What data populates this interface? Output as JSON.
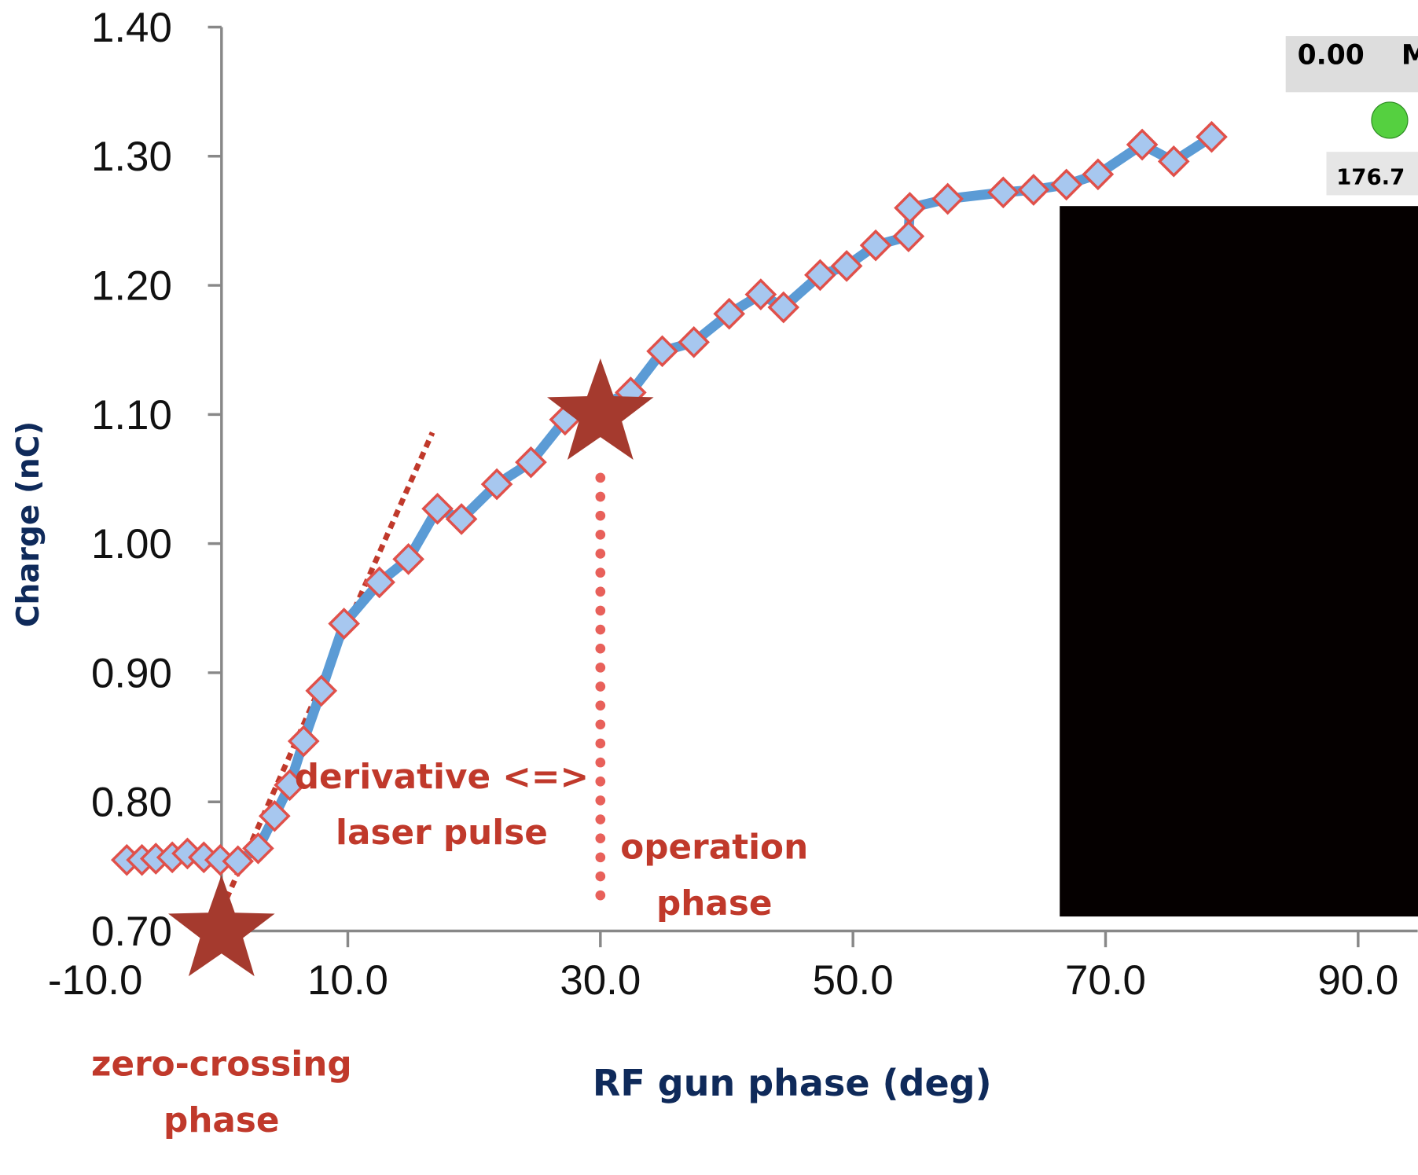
{
  "chart_data": {
    "type": "line",
    "x_label": "RF gun phase (deg)",
    "y_label": "Charge (nC)",
    "x": [
      -7.5,
      -6.3,
      -5.2,
      -3.9,
      -2.7,
      -1.4,
      -0.1,
      1.3,
      2.9,
      4.2,
      5.4,
      6.5,
      7.9,
      9.7,
      12.5,
      14.8,
      17.1,
      19.0,
      21.8,
      24.5,
      27.2,
      32.4,
      34.9,
      37.4,
      40.2,
      42.7,
      44.5,
      47.4,
      49.5,
      51.8,
      54.4,
      54.5,
      57.5,
      61.9,
      64.3,
      66.9,
      69.4,
      72.9,
      75.4,
      78.4
    ],
    "series": [
      {
        "color": "#5b9bd5",
        "marker_fill": "#a7c7ef",
        "marker_edge": "#e0504a",
        "values": [
          0.755,
          0.755,
          0.756,
          0.757,
          0.76,
          0.757,
          0.755,
          0.754,
          0.764,
          0.789,
          0.813,
          0.847,
          0.886,
          0.938,
          0.97,
          0.988,
          1.027,
          1.019,
          1.046,
          1.063,
          1.096,
          1.117,
          1.149,
          1.156,
          1.178,
          1.193,
          1.183,
          1.208,
          1.215,
          1.231,
          1.238,
          1.26,
          1.267,
          1.272,
          1.274,
          1.278,
          1.286,
          1.309,
          1.296,
          1.315
        ]
      }
    ],
    "xlim": [
      -10,
      94
    ],
    "ylim": [
      0.7,
      1.4
    ],
    "y_axis_at": 0,
    "xticks": [
      {
        "value": -10,
        "label": "-10.0"
      },
      {
        "value": 10,
        "label": "10.0"
      },
      {
        "value": 30,
        "label": "30.0"
      },
      {
        "value": 50,
        "label": "50.0"
      },
      {
        "value": 70,
        "label": "70.0"
      },
      {
        "value": 90,
        "label": "90.0"
      }
    ],
    "yticks": [
      {
        "value": 0.7,
        "label": "0.70"
      },
      {
        "value": 0.8,
        "label": "0.80"
      },
      {
        "value": 0.9,
        "label": "0.90"
      },
      {
        "value": 1.0,
        "label": "1.00"
      },
      {
        "value": 1.1,
        "label": "1.10"
      },
      {
        "value": 1.2,
        "label": "1.20"
      },
      {
        "value": 1.3,
        "label": "1.30"
      },
      {
        "value": 1.4,
        "label": "1.40"
      }
    ],
    "annotation_color": "#c0392b",
    "stars": [
      {
        "x": 0,
        "y": 0.7,
        "label": [
          "zero-crossing",
          "phase"
        ]
      },
      {
        "x": 30,
        "y": 1.1,
        "label": [
          "operation",
          "phase"
        ]
      }
    ],
    "tangent": {
      "x": [
        0.4,
        16.7
      ],
      "y": [
        0.725,
        1.086
      ],
      "label": [
        "derivative <=>",
        "laser pulse"
      ]
    },
    "inset": {
      "texts": [
        "0.00",
        "M",
        "176.7"
      ]
    }
  }
}
